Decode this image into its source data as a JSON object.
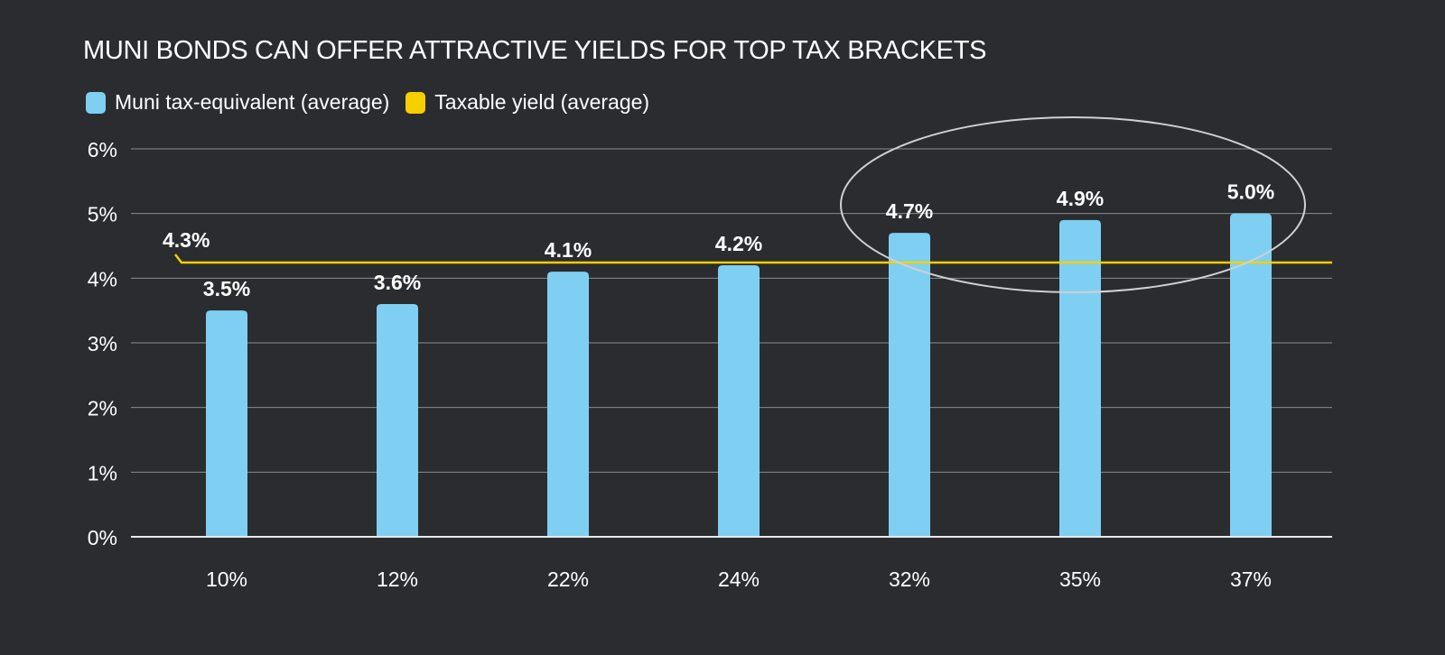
{
  "chart_data": {
    "type": "bar",
    "title": "MUNI BONDS CAN OFFER ATTRACTIVE YIELDS FOR TOP TAX BRACKETS",
    "xlabel": "",
    "ylabel": "",
    "categories": [
      "10%",
      "12%",
      "22%",
      "24%",
      "32%",
      "35%",
      "37%"
    ],
    "series": [
      {
        "name": "Muni tax-equivalent (average)",
        "type": "bar",
        "color": "#7fcff3",
        "values": [
          3.5,
          3.6,
          4.1,
          4.2,
          4.7,
          4.9,
          5.0
        ],
        "data_labels": [
          "3.5%",
          "3.6%",
          "4.1%",
          "4.2%",
          "4.7%",
          "4.9%",
          "5.0%"
        ]
      },
      {
        "name": "Taxable yield (average)",
        "type": "line",
        "color": "#f5cf00",
        "value": 4.3,
        "data_label": "4.3%"
      }
    ],
    "ylim": [
      0,
      6
    ],
    "yticks": [
      0,
      1,
      2,
      3,
      4,
      5,
      6
    ],
    "ytick_labels": [
      "0%",
      "1%",
      "2%",
      "3%",
      "4%",
      "5%",
      "6%"
    ],
    "grid": true,
    "legend_position": "top-left",
    "annotation": "ellipse highlighting 32%, 35%, 37% brackets"
  }
}
